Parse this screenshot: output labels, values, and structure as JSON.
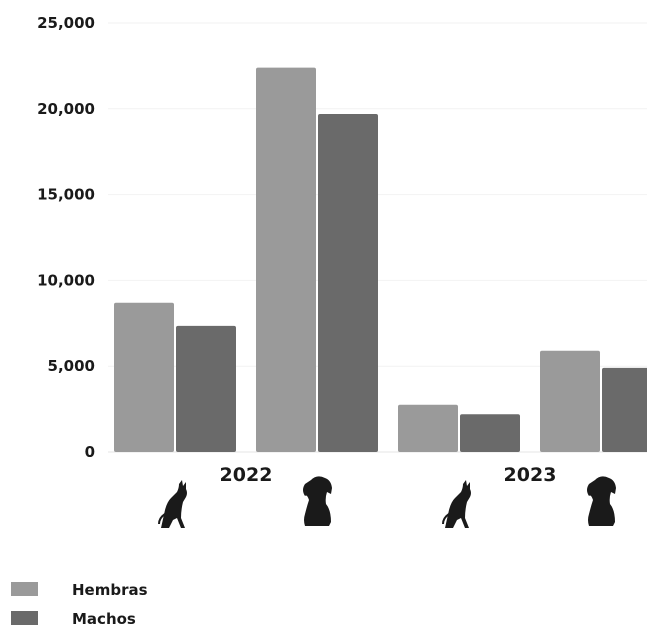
{
  "chart_data": {
    "type": "bar",
    "title": "",
    "xlabel": "",
    "ylabel": "",
    "ylim": [
      0,
      25000
    ],
    "yticks": [
      {
        "value": 0,
        "label": "0"
      },
      {
        "value": 5000,
        "label": "5,000"
      },
      {
        "value": 10000,
        "label": "10,000"
      },
      {
        "value": 15000,
        "label": "15,000"
      },
      {
        "value": 20000,
        "label": "20,000"
      },
      {
        "value": 25000,
        "label": "25,000"
      }
    ],
    "grid": true,
    "legend_position": "bottom-left",
    "groups": [
      {
        "label": "2022",
        "categories": [
          {
            "icon": "cat-icon",
            "values": [
              8700,
              7350
            ]
          },
          {
            "icon": "dog-icon",
            "values": [
              22400,
              19700
            ]
          }
        ]
      },
      {
        "label": "2023",
        "categories": [
          {
            "icon": "cat-icon",
            "values": [
              2750,
              2200
            ]
          },
          {
            "icon": "dog-icon",
            "values": [
              5900,
              4900
            ]
          }
        ]
      }
    ],
    "series": [
      {
        "name": "Hembras",
        "color": "#9a9a9a"
      },
      {
        "name": "Machos",
        "color": "#6a6a6a"
      }
    ]
  }
}
